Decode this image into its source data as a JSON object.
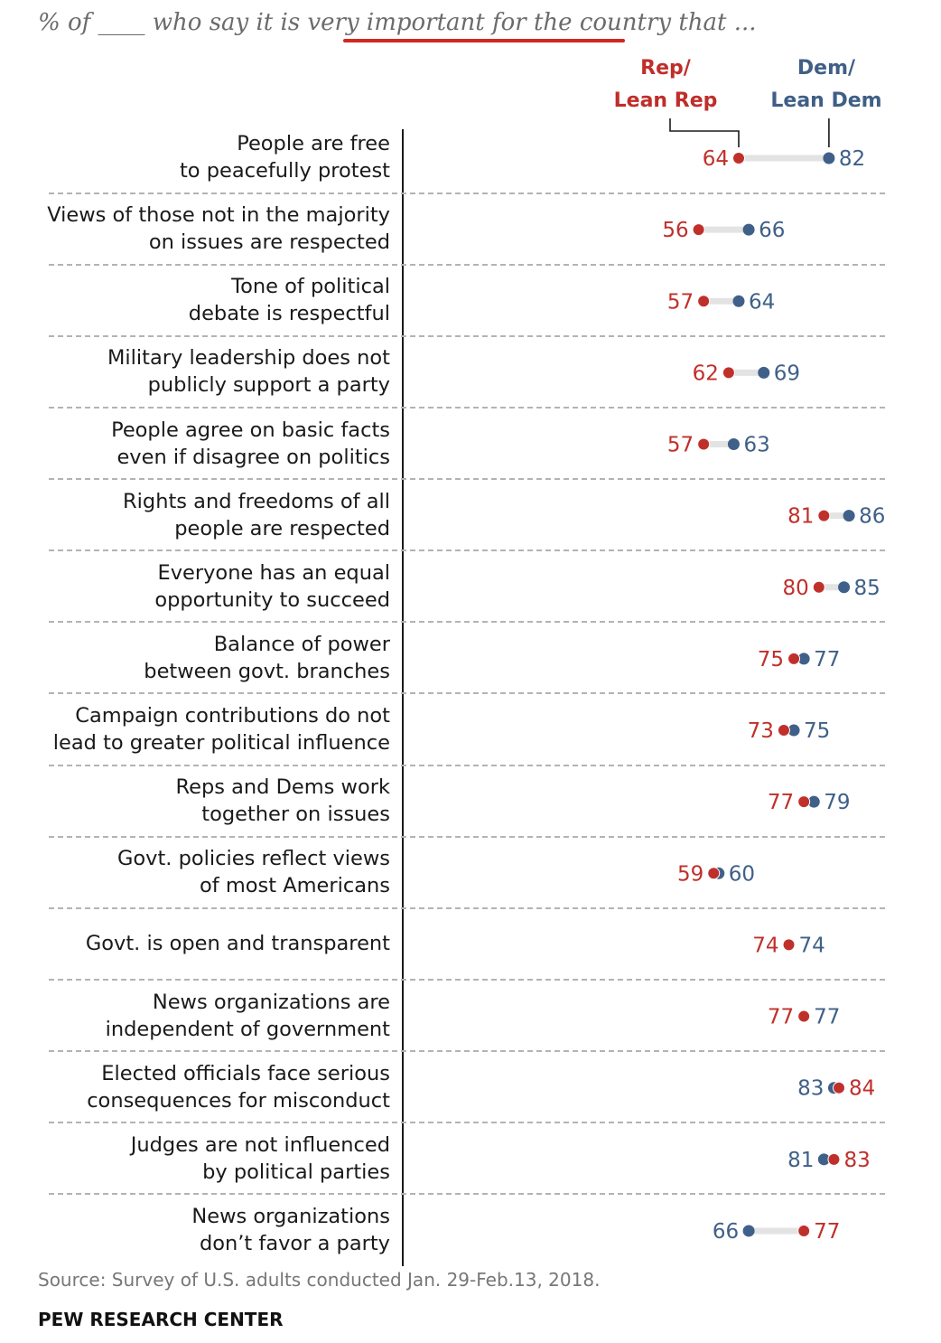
{
  "subtitle": {
    "prefix": "% of ",
    "blank": "____",
    "middle": " who say it is very ",
    "highlight": "important for the country",
    "suffix": " that ..."
  },
  "legend": {
    "rep_line1": "Rep/",
    "rep_line2": "Lean Rep",
    "dem_line1": "Dem/",
    "dem_line2": "Lean Dem"
  },
  "colors": {
    "rep": "#c0302b",
    "dem": "#3f6088",
    "connector": "#e3e3e3",
    "highlight_underline": "#d1281f"
  },
  "chart_data": {
    "type": "dot",
    "series": [
      {
        "name": "Rep/Lean Rep",
        "key": "rep"
      },
      {
        "name": "Dem/Lean Dem",
        "key": "dem"
      }
    ],
    "rows": [
      {
        "line1": "People are free",
        "line2": "to peacefully protest",
        "rep": 64,
        "dem": 82
      },
      {
        "line1": "Views of those not in the majority",
        "line2": "on issues are respected",
        "rep": 56,
        "dem": 66
      },
      {
        "line1": "Tone of political",
        "line2": "debate is respectful",
        "rep": 57,
        "dem": 64
      },
      {
        "line1": "Military leadership does not",
        "line2": "publicly support a party",
        "rep": 62,
        "dem": 69
      },
      {
        "line1": "People agree on basic facts",
        "line2": "even if disagree on politics",
        "rep": 57,
        "dem": 63
      },
      {
        "line1": "Rights and freedoms of all",
        "line2": "people are respected",
        "rep": 81,
        "dem": 86
      },
      {
        "line1": "Everyone has an equal",
        "line2": "opportunity to succeed",
        "rep": 80,
        "dem": 85
      },
      {
        "line1": "Balance of power",
        "line2": "between govt. branches",
        "rep": 75,
        "dem": 77
      },
      {
        "line1": "Campaign contributions do not",
        "line2": "lead to greater political influence",
        "rep": 73,
        "dem": 75
      },
      {
        "line1": "Reps and Dems work",
        "line2": "together on  issues",
        "rep": 77,
        "dem": 79
      },
      {
        "line1": "Govt. policies reflect views",
        "line2": "of most Americans",
        "rep": 59,
        "dem": 60
      },
      {
        "line1": "Govt. is open and transparent",
        "line2": "",
        "rep": 74,
        "dem": 74
      },
      {
        "line1": "News organizations are",
        "line2": "independent of government",
        "rep": 77,
        "dem": 77
      },
      {
        "line1": "Elected officials face serious",
        "line2": "consequences for misconduct",
        "rep": 84,
        "dem": 83
      },
      {
        "line1": "Judges are not influenced",
        "line2": "by political parties",
        "rep": 83,
        "dem": 81
      },
      {
        "line1": "News organizations",
        "line2": "don’t favor a party",
        "rep": 77,
        "dem": 66
      }
    ]
  },
  "source": "Source: Survey of U.S. adults conducted Jan. 29-Feb.13, 2018.",
  "organization": "PEW RESEARCH CENTER"
}
